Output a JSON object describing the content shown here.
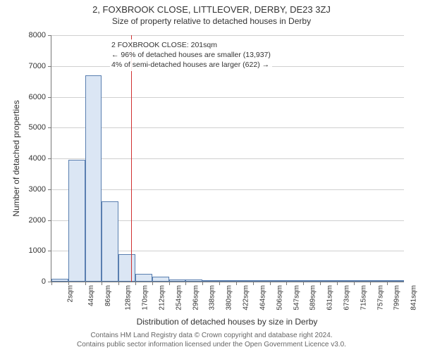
{
  "title": "2, FOXBROOK CLOSE, LITTLEOVER, DERBY, DE23 3ZJ",
  "subtitle": "Size of property relative to detached houses in Derby",
  "ylabel": "Number of detached properties",
  "xlabel": "Distribution of detached houses by size in Derby",
  "annotation": {
    "line1": "2 FOXBROOK CLOSE: 201sqm",
    "line2": "← 96% of detached houses are smaller (13,937)",
    "line3": "4% of semi-detached houses are larger (622) →"
  },
  "footer": {
    "line1": "Contains HM Land Registry data © Crown copyright and database right 2024.",
    "line2": "Contains public sector information licensed under the Open Government Licence v3.0."
  },
  "chart": {
    "type": "histogram",
    "ylim": [
      0,
      8000
    ],
    "ytick_step": 1000,
    "background_color": "#ffffff",
    "grid_color": "#d0d0d0",
    "bar_fill": "#dbe6f4",
    "bar_border": "#5a7fb0",
    "vline_color": "#d03030",
    "vline_x": 201,
    "x_start": 2,
    "x_binwidth": 42,
    "x_bins": 21,
    "x_tick_labels": [
      "2sqm",
      "44sqm",
      "86sqm",
      "128sqm",
      "170sqm",
      "212sqm",
      "254sqm",
      "296sqm",
      "338sqm",
      "380sqm",
      "422sqm",
      "464sqm",
      "506sqm",
      "547sqm",
      "589sqm",
      "631sqm",
      "673sqm",
      "715sqm",
      "757sqm",
      "799sqm",
      "841sqm"
    ],
    "values": [
      100,
      3950,
      6700,
      2600,
      900,
      250,
      150,
      80,
      60,
      40,
      20,
      15,
      10,
      8,
      6,
      4,
      3,
      2,
      1,
      1,
      0
    ],
    "title_fontsize": 13,
    "label_fontsize": 12,
    "tick_fontsize": 11
  }
}
